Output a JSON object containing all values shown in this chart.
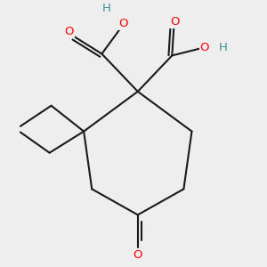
{
  "background_color": "#eeeeee",
  "bond_color": "#1a1a1a",
  "oxygen_color": "#ff0000",
  "hydrogen_color": "#3d8f8f",
  "line_width": 1.5,
  "figsize": [
    3.0,
    3.0
  ],
  "dpi": 100,
  "font_size": 9.5,
  "xlim": [
    -1.5,
    1.5
  ],
  "ylim": [
    -1.6,
    1.4
  ]
}
